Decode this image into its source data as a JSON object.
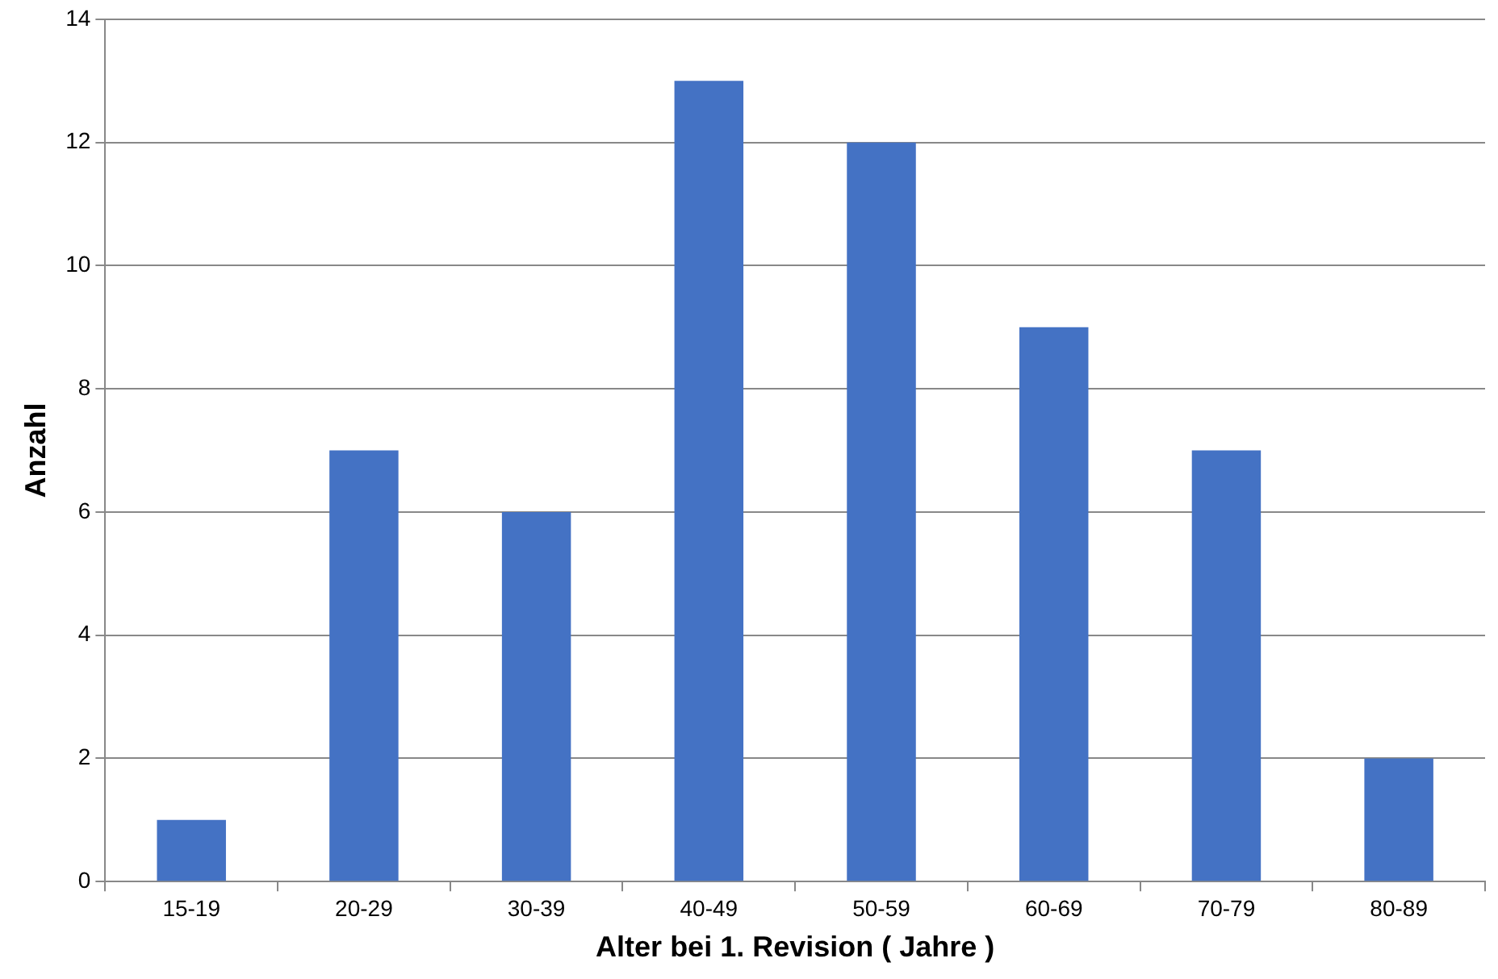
{
  "chart_data": {
    "type": "bar",
    "xlabel": "Alter bei 1. Revision ( Jahre )",
    "ylabel": "Anzahl",
    "categories": [
      "15-19",
      "20-29",
      "30-39",
      "40-49",
      "50-59",
      "60-69",
      "70-79",
      "80-89"
    ],
    "values": [
      1,
      7,
      6,
      13,
      12,
      9,
      7,
      2
    ],
    "color": "#4472c4",
    "ylim": [
      0,
      14
    ],
    "yticks": [
      0,
      2,
      4,
      6,
      8,
      10,
      12,
      14
    ],
    "grid": "y"
  }
}
